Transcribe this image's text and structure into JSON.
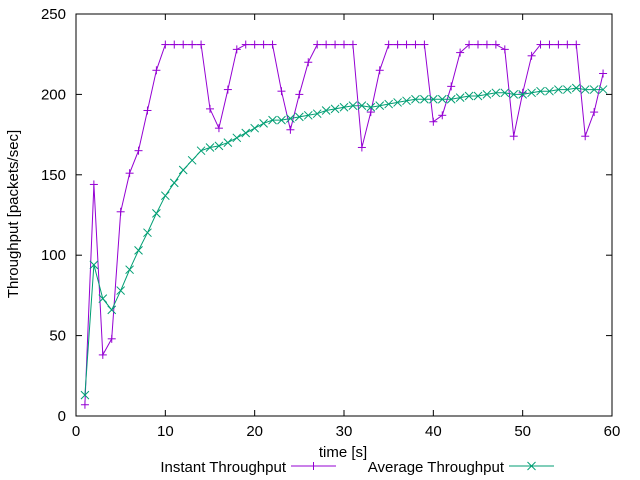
{
  "chart_data": {
    "type": "line",
    "title": "",
    "xlabel": "time [s]",
    "ylabel": "Throughput [packets/sec]",
    "xlim": [
      0,
      60
    ],
    "ylim": [
      0,
      250
    ],
    "xticks": [
      0,
      10,
      20,
      30,
      40,
      50,
      60
    ],
    "yticks": [
      0,
      50,
      100,
      150,
      200,
      250
    ],
    "grid": false,
    "legend_position": "bottom",
    "series": [
      {
        "name": "Instant Throughput",
        "color": "#9400d3",
        "marker": "plus",
        "x": [
          1,
          2,
          3,
          4,
          5,
          6,
          7,
          8,
          9,
          10,
          11,
          12,
          13,
          14,
          15,
          16,
          17,
          18,
          19,
          20,
          21,
          22,
          23,
          24,
          25,
          26,
          27,
          28,
          29,
          30,
          31,
          32,
          33,
          34,
          35,
          36,
          37,
          38,
          39,
          40,
          41,
          42,
          43,
          44,
          45,
          46,
          47,
          48,
          49,
          50,
          51,
          52,
          53,
          54,
          55,
          56,
          57,
          58,
          59
        ],
        "values": [
          7,
          144,
          38,
          48,
          127,
          151,
          165,
          190,
          215,
          231,
          231,
          231,
          231,
          231,
          191,
          179,
          203,
          228,
          231,
          231,
          231,
          231,
          202,
          178,
          200,
          220,
          231,
          231,
          231,
          231,
          231,
          167,
          189,
          215,
          231,
          231,
          231,
          231,
          231,
          183,
          187,
          205,
          226,
          231,
          231,
          231,
          231,
          228,
          174,
          201,
          224,
          231,
          231,
          231,
          231,
          231,
          174,
          189,
          213
        ]
      },
      {
        "name": "Average Throughput",
        "color": "#009e73",
        "marker": "cross",
        "x": [
          1,
          2,
          3,
          4,
          5,
          6,
          7,
          8,
          9,
          10,
          11,
          12,
          13,
          14,
          15,
          16,
          17,
          18,
          19,
          20,
          21,
          22,
          23,
          24,
          25,
          26,
          27,
          28,
          29,
          30,
          31,
          32,
          33,
          34,
          35,
          36,
          37,
          38,
          39,
          40,
          41,
          42,
          43,
          44,
          45,
          46,
          47,
          48,
          49,
          50,
          51,
          52,
          53,
          54,
          55,
          56,
          57,
          58,
          59
        ],
        "values": [
          13,
          94,
          73,
          66,
          78,
          91,
          103,
          114,
          126,
          137,
          145,
          153,
          159,
          165,
          167,
          168,
          170,
          173,
          176,
          179,
          182,
          184,
          184,
          185,
          186,
          187,
          188,
          190,
          191,
          192,
          193,
          193,
          192,
          193,
          194,
          195,
          196,
          197,
          197,
          197,
          197,
          197,
          198,
          199,
          199,
          200,
          201,
          201,
          200,
          200,
          201,
          202,
          202,
          203,
          203,
          204,
          203,
          203,
          203
        ]
      }
    ]
  }
}
